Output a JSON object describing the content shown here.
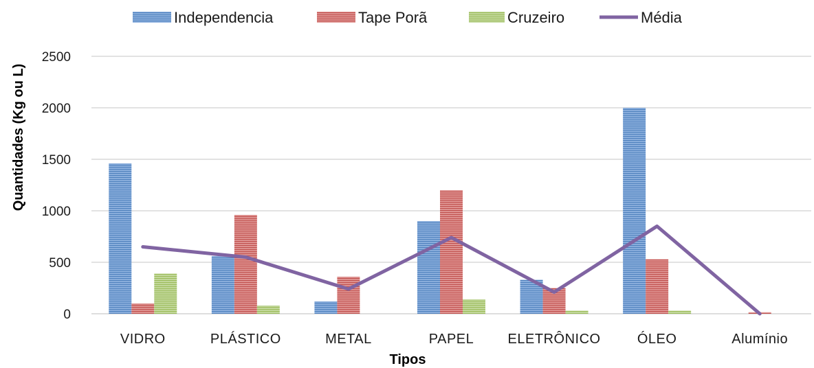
{
  "chart_data": {
    "type": "bar",
    "title": "",
    "xlabel": "Tipos",
    "ylabel": "Quantidades  (Kg ou L)",
    "ylim": [
      0,
      2500
    ],
    "yticks": [
      0,
      500,
      1000,
      1500,
      2000,
      2500
    ],
    "grid": true,
    "legend_position": "top",
    "categories": [
      "VIDRO",
      "PLÁSTICO",
      "METAL",
      "PAPEL",
      "ELETRÔNICO",
      "ÓLEO",
      "Alumínio"
    ],
    "series": [
      {
        "name": "Independencia",
        "type": "bar",
        "color": "#4f81bd",
        "values": [
          1460,
          560,
          120,
          900,
          330,
          2000,
          0
        ]
      },
      {
        "name": "Tape Porã",
        "type": "bar",
        "color": "#c0504d",
        "values": [
          100,
          960,
          360,
          1200,
          250,
          530,
          15
        ]
      },
      {
        "name": "Cruzeiro",
        "type": "bar",
        "color": "#9bbb59",
        "values": [
          390,
          80,
          0,
          140,
          30,
          30,
          0
        ]
      },
      {
        "name": "Média",
        "type": "line",
        "color": "#8064a2",
        "values": [
          650,
          550,
          240,
          740,
          210,
          850,
          0
        ]
      }
    ]
  }
}
